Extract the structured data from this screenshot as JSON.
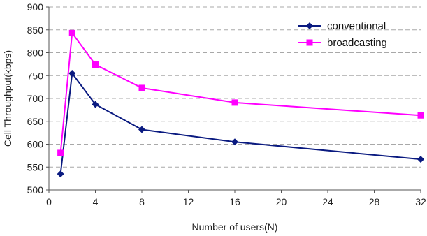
{
  "chart_data": {
    "type": "line",
    "title": "",
    "xlabel": "Number of users(N)",
    "ylabel": "Cell Throughput(kbps)",
    "xlim": [
      0,
      32
    ],
    "ylim": [
      500,
      900
    ],
    "xticks": [
      0,
      4,
      8,
      12,
      16,
      20,
      24,
      28,
      32
    ],
    "yticks": [
      500,
      550,
      600,
      650,
      700,
      750,
      800,
      850,
      900
    ],
    "grid": "horizontal dashed",
    "legend_position": "top-right",
    "series": [
      {
        "name": "conventional",
        "color": "#0a1a80",
        "marker": "diamond",
        "points": [
          [
            1,
            535
          ],
          [
            2,
            755
          ],
          [
            4,
            687
          ],
          [
            8,
            632
          ],
          [
            16,
            605
          ],
          [
            32,
            567
          ]
        ]
      },
      {
        "name": "broadcasting",
        "color": "#ff00ff",
        "marker": "square",
        "points": [
          [
            1,
            581
          ],
          [
            2,
            843
          ],
          [
            4,
            774
          ],
          [
            8,
            723
          ],
          [
            16,
            691
          ],
          [
            32,
            663
          ]
        ]
      }
    ]
  }
}
